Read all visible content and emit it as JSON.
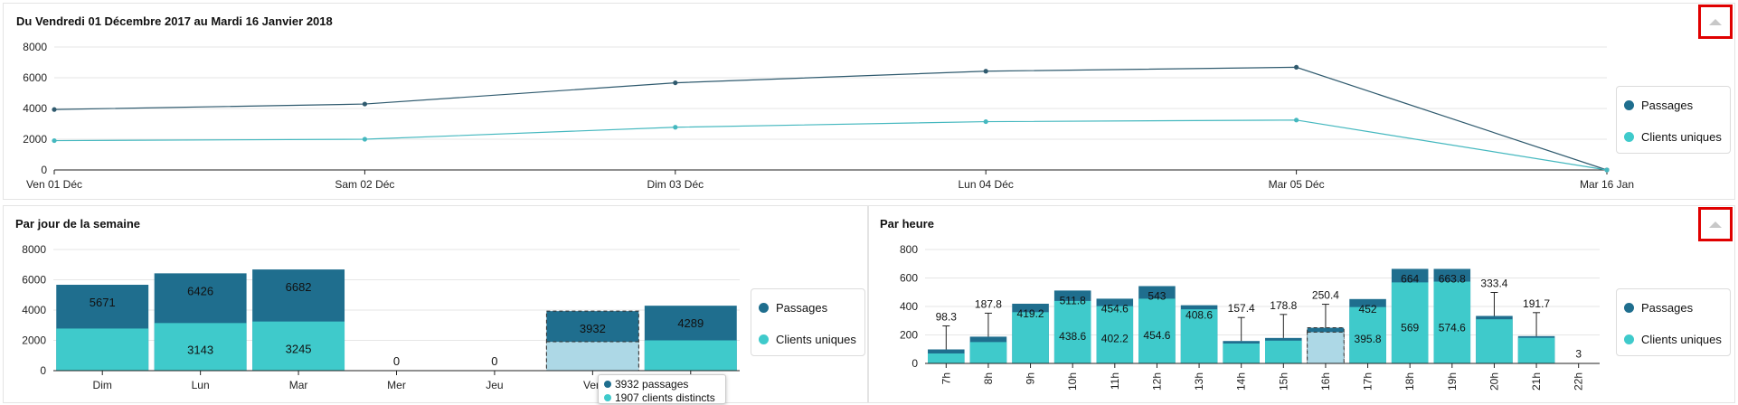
{
  "colors": {
    "passages": "#1f6e8e",
    "clients": "#3fcacb",
    "hover": "#add8e6",
    "line_passages": "#2f5a6e",
    "line_clients": "#45b8bf"
  },
  "legend": {
    "passages": "Passages",
    "clients": "Clients uniques"
  },
  "tooltip": {
    "line1": "3932 passages",
    "line2": "1907 clients distincts"
  },
  "chart_data": [
    {
      "type": "line",
      "title": "Du Vendredi 01 Décembre 2017 au Mardi 16 Janvier 2018",
      "categories": [
        "Ven 01 Déc",
        "Sam 02 Déc",
        "Dim 03 Déc",
        "Lun 04 Déc",
        "Mar 05 Déc",
        "Mar 16 Jan"
      ],
      "series": [
        {
          "name": "Passages",
          "values": [
            3932,
            4289,
            5671,
            6426,
            6682,
            0
          ]
        },
        {
          "name": "Clients uniques",
          "values": [
            1907,
            2000,
            2780,
            3143,
            3245,
            0
          ]
        }
      ],
      "ylim": [
        0,
        8000
      ],
      "yticks": [
        0,
        2000,
        4000,
        6000,
        8000
      ],
      "grid": true,
      "legend": "right"
    },
    {
      "type": "bar",
      "title": "Par jour de la semaine",
      "categories": [
        "Dim",
        "Lun",
        "Mar",
        "Mer",
        "Jeu",
        "Ven",
        "Sam"
      ],
      "series": [
        {
          "name": "Passages",
          "values": [
            5671,
            6426,
            6682,
            0,
            0,
            3932,
            4289
          ]
        },
        {
          "name": "Clients uniques",
          "values": [
            2780,
            3143,
            3245,
            0,
            0,
            1907,
            2000
          ]
        }
      ],
      "labels_top": [
        "5671",
        "6426",
        "6682",
        "0",
        "0",
        "3932",
        "4289"
      ],
      "labels_inner": [
        "",
        "3143",
        "3245",
        "",
        "",
        "",
        ""
      ],
      "highlight_index": 5,
      "ylim": [
        0,
        8000
      ],
      "yticks": [
        0,
        2000,
        4000,
        6000,
        8000
      ],
      "grid": true,
      "legend": "right"
    },
    {
      "type": "bar",
      "title": "Par heure",
      "categories": [
        "7h",
        "8h",
        "9h",
        "10h",
        "11h",
        "12h",
        "13h",
        "14h",
        "15h",
        "16h",
        "17h",
        "18h",
        "19h",
        "20h",
        "21h",
        "22h"
      ],
      "series": [
        {
          "name": "Passages",
          "values": [
            98.3,
            187.8,
            419.2,
            511.8,
            454.6,
            543,
            408.6,
            157.4,
            178.8,
            250.4,
            452,
            664,
            663.8,
            333.4,
            191.7,
            3
          ]
        },
        {
          "name": "Clients uniques",
          "values": [
            70,
            150,
            360,
            438.6,
            402.2,
            454.6,
            380,
            140,
            160,
            220,
            395.8,
            569,
            574.6,
            310,
            180,
            0
          ]
        }
      ],
      "labels_top": [
        "98.3",
        "187.8",
        "419.2",
        "511.8",
        "454.6",
        "543",
        "408.6",
        "157.4",
        "178.8",
        "250.4",
        "452",
        "664",
        "663.8",
        "333.4",
        "191.7",
        "3"
      ],
      "labels_inner": [
        "",
        "",
        "",
        "438.6",
        "402.2",
        "454.6",
        "",
        "",
        "",
        "",
        "395.8",
        "569",
        "574.6",
        "",
        "",
        ""
      ],
      "label_pos": [
        "above",
        "above",
        "inside",
        "inside",
        "inside",
        "inside",
        "inside",
        "above",
        "above",
        "above",
        "inside",
        "inside",
        "inside",
        "above",
        "above",
        "above"
      ],
      "error_bars": [
        true,
        true,
        false,
        false,
        false,
        false,
        false,
        true,
        true,
        true,
        false,
        false,
        false,
        true,
        true,
        false
      ],
      "highlight_index": 9,
      "ylim": [
        0,
        800
      ],
      "yticks": [
        0,
        200,
        400,
        600,
        800
      ],
      "grid": true,
      "legend": "right"
    }
  ]
}
